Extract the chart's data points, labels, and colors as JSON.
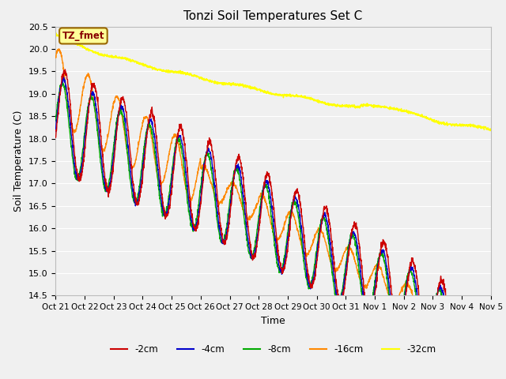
{
  "title": "Tonzi Soil Temperatures Set C",
  "xlabel": "Time",
  "ylabel": "Soil Temperature (C)",
  "ylim": [
    14.5,
    20.5
  ],
  "background_color": "#f0f0f0",
  "plot_bg_color": "#f0f0f0",
  "grid_color": "#ffffff",
  "colors": {
    "-2cm": "#cc0000",
    "-4cm": "#0000cc",
    "-8cm": "#00aa00",
    "-16cm": "#ff8800",
    "-32cm": "#ffff00"
  },
  "legend_labels": [
    "-2cm",
    "-4cm",
    "-8cm",
    "-16cm",
    "-32cm"
  ],
  "tick_labels": [
    "Oct 21",
    "Oct 22",
    "Oct 23",
    "Oct 24",
    "Oct 25",
    "Oct 26",
    "Oct 27",
    "Oct 28",
    "Oct 29",
    "Oct 30",
    "Oct 31",
    "Nov 1",
    "Nov 2",
    "Nov 3",
    "Nov 4",
    "Nov 5"
  ],
  "annotation_text": "TZ_fmet",
  "annotation_color": "#880000",
  "annotation_bg": "#ffff99",
  "annotation_border": "#996600"
}
